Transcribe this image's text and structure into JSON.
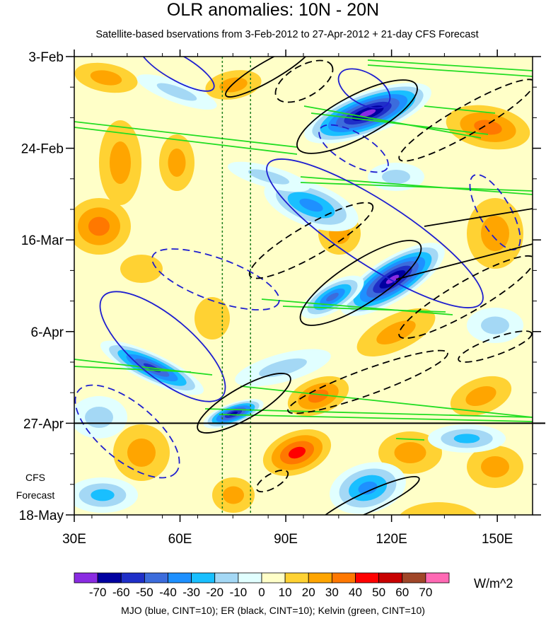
{
  "chart_data": {
    "type": "heatmap",
    "title": "OLR anomalies: 10N - 20N",
    "subtitle": "Satellite-based bservations from 3-Feb-2012 to 27-Apr-2012 + 21-day CFS Forecast",
    "x_axis": {
      "range": [
        30,
        160
      ],
      "ticks": [
        30,
        60,
        90,
        120,
        150
      ],
      "tick_labels": [
        "30E",
        "60E",
        "90E",
        "120E",
        "150E"
      ]
    },
    "y_axis": {
      "reversed": true,
      "range": [
        "3-Feb-2012",
        "18-May-2012"
      ],
      "ticks": [
        "2012-02-03",
        "2012-02-24",
        "2012-03-16",
        "2012-04-06",
        "2012-04-27",
        "2012-05-18"
      ],
      "tick_labels": [
        "3-Feb",
        "24-Feb",
        "16-Mar",
        "6-Apr",
        "27-Apr",
        "18-May"
      ]
    },
    "forecast_label": [
      "CFS",
      "Forecast"
    ],
    "forecast_start": "2012-04-27",
    "reference_longitudes": [
      72,
      80
    ],
    "colorbar": {
      "units": "W/m^2",
      "levels": [
        -70,
        -60,
        -50,
        -40,
        -30,
        -20,
        -10,
        0,
        10,
        20,
        30,
        40,
        50,
        60,
        70
      ],
      "colors": [
        "#8a2be2",
        "#0000a0",
        "#1f2fc8",
        "#3c6cdc",
        "#1e90ff",
        "#19bfff",
        "#a4d8f5",
        "#e1ffff",
        "#ffffc8",
        "#ffd233",
        "#ffa500",
        "#ff7800",
        "#ff0000",
        "#c80000",
        "#a04628",
        "#ff69b4"
      ]
    },
    "contours": {
      "legend": "MJO (blue, CINT=10); ER (black, CINT=10); Kelvin (green, CINT=10)",
      "series": [
        {
          "name": "MJO",
          "color": "#1f1fcf"
        },
        {
          "name": "ER",
          "color": "#000000"
        },
        {
          "name": "Kelvin",
          "color": "#22dd22"
        }
      ]
    }
  }
}
